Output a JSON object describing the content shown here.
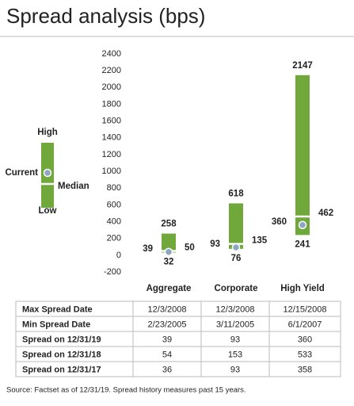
{
  "chart_data": {
    "type": "range",
    "title": "Spread analysis (bps)",
    "categories": [
      "Aggregate",
      "Corporate",
      "High Yield"
    ],
    "series": [
      {
        "name": "High",
        "color": "#2e7fc1",
        "values": [
          258,
          618,
          2147
        ]
      },
      {
        "name": "Low",
        "color": "#9b2a5a",
        "values": [
          32,
          76,
          241
        ]
      },
      {
        "name": "Current",
        "color": "#8ea6c2",
        "values": [
          39,
          93,
          360
        ]
      },
      {
        "name": "Median",
        "color": "#3b3a78",
        "values": [
          50,
          135,
          462
        ]
      }
    ],
    "bar_color": "#70a83c",
    "category_color": "#6aa436",
    "ylim": [
      -200,
      2400
    ],
    "yticks": [
      -200,
      0,
      200,
      400,
      600,
      800,
      1000,
      1200,
      1400,
      1600,
      1800,
      2000,
      2200,
      2400
    ],
    "grid": false
  },
  "table": {
    "rows": [
      [
        "Max Spread Date",
        "12/3/2008",
        "12/3/2008",
        "12/15/2008"
      ],
      [
        "Min Spread Date",
        "2/23/2005",
        "3/11/2005",
        "6/1/2007"
      ],
      [
        "Spread on 12/31/19",
        "39",
        "93",
        "360"
      ],
      [
        "Spread on 12/31/18",
        "54",
        "153",
        "533"
      ],
      [
        "Spread on 12/31/17",
        "36",
        "93",
        "358"
      ]
    ]
  },
  "footnote": "Source: Factset as of 12/31/19. Spread history measures past 15 years."
}
